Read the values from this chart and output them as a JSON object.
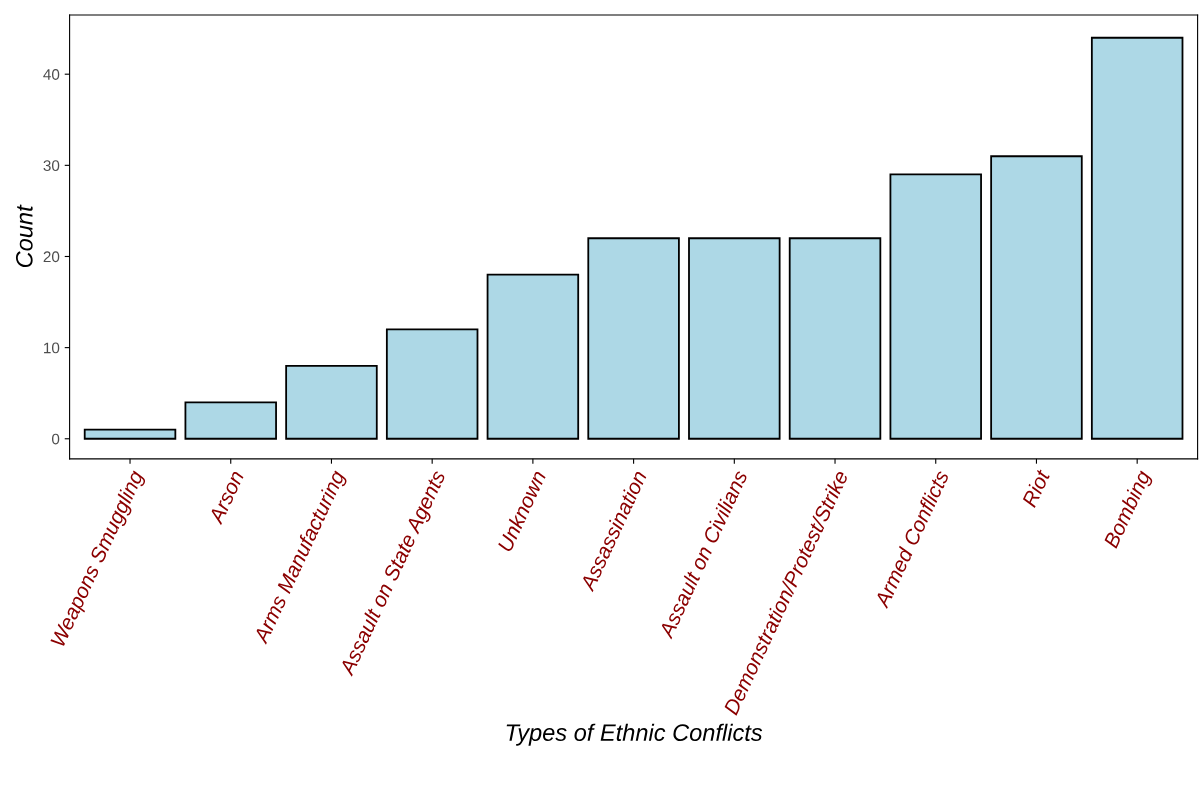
{
  "chart_data": {
    "type": "bar",
    "xlabel": "Types of Ethnic Conflicts",
    "ylabel": "Count",
    "categories": [
      "Weapons Smuggling",
      "Arson",
      "Arms Manufacturing",
      "Assault on State Agents",
      "Unknown",
      "Assassination",
      "Assault on Civilians",
      "Demonstration/Protest/Strike",
      "Armed Conflicts",
      "Riot",
      "Bombing"
    ],
    "values": [
      1,
      4,
      8,
      12,
      18,
      22,
      22,
      22,
      29,
      31,
      44
    ],
    "color": "#add8e6",
    "ylim": [
      -2.2,
      46.5
    ],
    "yticks": [
      0,
      10,
      20,
      30,
      40
    ],
    "grid": false
  }
}
